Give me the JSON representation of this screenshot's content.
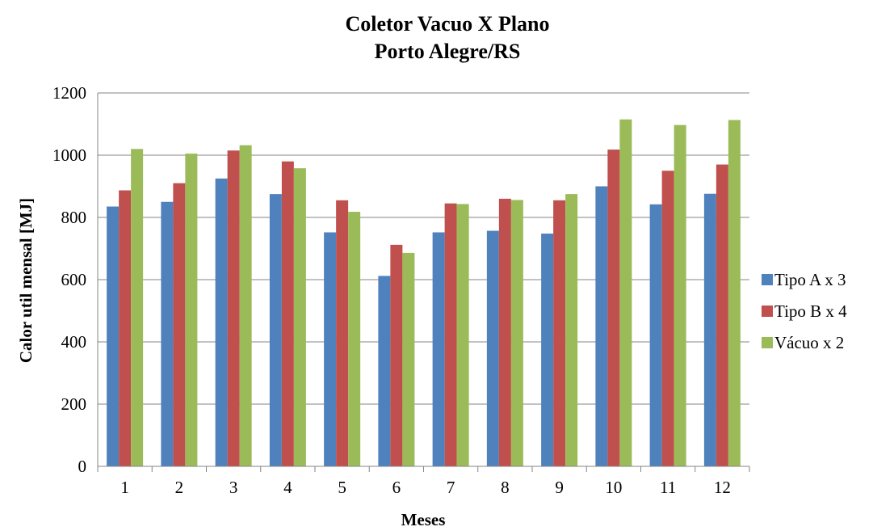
{
  "chart_data": {
    "type": "bar",
    "title": [
      "Coletor Vacuo X Plano",
      "Porto Alegre/RS"
    ],
    "xlabel": "Meses",
    "ylabel": "Calor util  mensal [MJ]",
    "ylim": [
      0,
      1200
    ],
    "yticks": [
      "0",
      "200",
      "400",
      "600",
      "800",
      "1000",
      "1200"
    ],
    "categories": [
      "1",
      "2",
      "3",
      "4",
      "5",
      "6",
      "7",
      "8",
      "9",
      "10",
      "11",
      "12"
    ],
    "grid": true,
    "legend_position": "right",
    "series": [
      {
        "name": "Tipo A x 3",
        "color": "#4F81BD",
        "values": [
          835,
          850,
          925,
          875,
          752,
          612,
          752,
          757,
          748,
          900,
          842,
          876
        ]
      },
      {
        "name": "Tipo B x 4",
        "color": "#C0504D",
        "values": [
          887,
          910,
          1015,
          980,
          855,
          712,
          845,
          860,
          855,
          1018,
          950,
          970
        ]
      },
      {
        "name": "Vácuo x 2",
        "color": "#9BBB59",
        "values": [
          1020,
          1005,
          1032,
          958,
          818,
          686,
          843,
          856,
          875,
          1115,
          1097,
          1113
        ]
      }
    ]
  }
}
